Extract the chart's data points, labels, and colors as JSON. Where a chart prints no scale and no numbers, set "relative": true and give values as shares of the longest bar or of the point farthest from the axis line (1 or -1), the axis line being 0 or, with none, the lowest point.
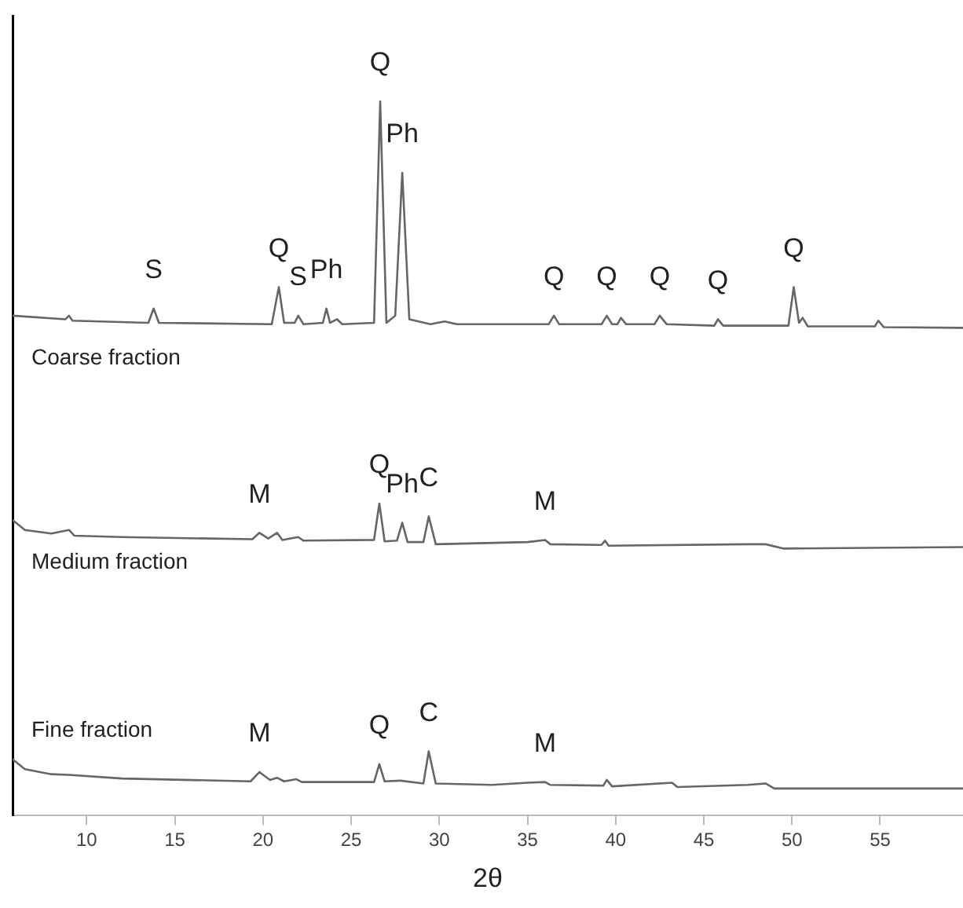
{
  "chart_data": {
    "type": "line",
    "relative": true,
    "xlabel": "2θ",
    "xlim": [
      5.8,
      59.7
    ],
    "xticks": [
      10,
      15,
      20,
      25,
      30,
      35,
      40,
      45,
      50,
      55
    ],
    "grid": false,
    "legend": false,
    "marker": "none",
    "line_style": "solid",
    "series": [
      {
        "name": "Coarse fraction",
        "color": "#666666",
        "x": [
          5.8,
          8.8,
          9,
          9.2,
          13.5,
          13.8,
          14.1,
          20.5,
          20.9,
          21.2,
          21.8,
          22.0,
          22.3,
          23.4,
          23.6,
          23.8,
          24.2,
          24.5,
          26.3,
          26.65,
          27.0,
          27.5,
          27.9,
          28.3,
          29.5,
          30.3,
          31,
          36.2,
          36.5,
          36.8,
          39.2,
          39.5,
          39.8,
          40.1,
          40.3,
          40.6,
          42.2,
          42.5,
          42.9,
          45.6,
          45.8,
          46.1,
          49.8,
          50.1,
          50.4,
          50.6,
          50.9,
          54.7,
          54.9,
          55.2,
          59.7
        ],
        "values": [
          0.7,
          0.695,
          0.7,
          0.693,
          0.69,
          0.71,
          0.69,
          0.688,
          0.74,
          0.69,
          0.69,
          0.7,
          0.688,
          0.69,
          0.71,
          0.69,
          0.695,
          0.688,
          0.69,
          1,
          0.69,
          0.7,
          0.9,
          0.695,
          0.688,
          0.692,
          0.688,
          0.688,
          0.7,
          0.688,
          0.688,
          0.7,
          0.688,
          0.688,
          0.697,
          0.688,
          0.688,
          0.7,
          0.688,
          0.686,
          0.695,
          0.686,
          0.686,
          0.74,
          0.69,
          0.697,
          0.685,
          0.685,
          0.693,
          0.684,
          0.683
        ]
      },
      {
        "name": "Medium fraction",
        "color": "#666666",
        "x": [
          5.8,
          6.5,
          8,
          9,
          9.3,
          12,
          19.4,
          19.8,
          20.3,
          20.8,
          21.1,
          22,
          22.3,
          26.3,
          26.6,
          26.9,
          27.6,
          27.9,
          28.2,
          29.1,
          29.4,
          29.8,
          35,
          36,
          36.3,
          39.2,
          39.4,
          39.6,
          47.5,
          48.5,
          49.5,
          59.7
        ],
        "values": [
          0.414,
          0.4,
          0.395,
          0.4,
          0.392,
          0.39,
          0.387,
          0.396,
          0.388,
          0.396,
          0.386,
          0.39,
          0.385,
          0.386,
          0.437,
          0.384,
          0.385,
          0.41,
          0.383,
          0.383,
          0.419,
          0.38,
          0.383,
          0.386,
          0.38,
          0.379,
          0.385,
          0.378,
          0.38,
          0.38,
          0.374,
          0.376
        ]
      },
      {
        "name": "Fine fraction",
        "color": "#666666",
        "x": [
          5.8,
          6.5,
          8,
          9,
          12,
          19.3,
          19.8,
          20.4,
          20.8,
          21.2,
          21.9,
          22.2,
          26.3,
          26.6,
          26.9,
          27.8,
          29.1,
          29.4,
          29.8,
          33,
          35,
          36,
          36.3,
          39.3,
          39.5,
          39.8,
          43.2,
          43.5,
          47.5,
          48.5,
          49,
          59.7
        ],
        "values": [
          0.079,
          0.065,
          0.058,
          0.057,
          0.052,
          0.048,
          0.061,
          0.05,
          0.053,
          0.048,
          0.051,
          0.047,
          0.047,
          0.072,
          0.048,
          0.049,
          0.045,
          0.09,
          0.045,
          0.043,
          0.046,
          0.047,
          0.043,
          0.042,
          0.05,
          0.041,
          0.046,
          0.04,
          0.043,
          0.045,
          0.038,
          0.038
        ]
      }
    ],
    "annotations": [
      {
        "text": "S",
        "x": 13.8,
        "y": 0.71
      },
      {
        "text": "Q",
        "x": 20.9,
        "y": 0.74
      },
      {
        "text": "S",
        "x": 22.0,
        "y": 0.7
      },
      {
        "text": "Ph",
        "x": 23.6,
        "y": 0.71
      },
      {
        "text": "Q",
        "x": 26.65,
        "y": 1
      },
      {
        "text": "Ph",
        "x": 27.9,
        "y": 0.9
      },
      {
        "text": "Q",
        "x": 36.5,
        "y": 0.7
      },
      {
        "text": "Q",
        "x": 39.5,
        "y": 0.7
      },
      {
        "text": "Q",
        "x": 42.5,
        "y": 0.7
      },
      {
        "text": "Q",
        "x": 45.8,
        "y": 0.695
      },
      {
        "text": "Q",
        "x": 50.1,
        "y": 0.74
      },
      {
        "text": "M",
        "x": 19.8,
        "y": 0.396
      },
      {
        "text": "Q",
        "x": 26.6,
        "y": 0.437
      },
      {
        "text": "Ph",
        "x": 27.9,
        "y": 0.41
      },
      {
        "text": "C",
        "x": 29.4,
        "y": 0.419
      },
      {
        "text": "M",
        "x": 36,
        "y": 0.386
      },
      {
        "text": "M",
        "x": 19.8,
        "y": 0.061
      },
      {
        "text": "Q",
        "x": 26.6,
        "y": 0.072
      },
      {
        "text": "C",
        "x": 29.4,
        "y": 0.09
      },
      {
        "text": "M",
        "x": 36,
        "y": 0.047
      }
    ]
  }
}
